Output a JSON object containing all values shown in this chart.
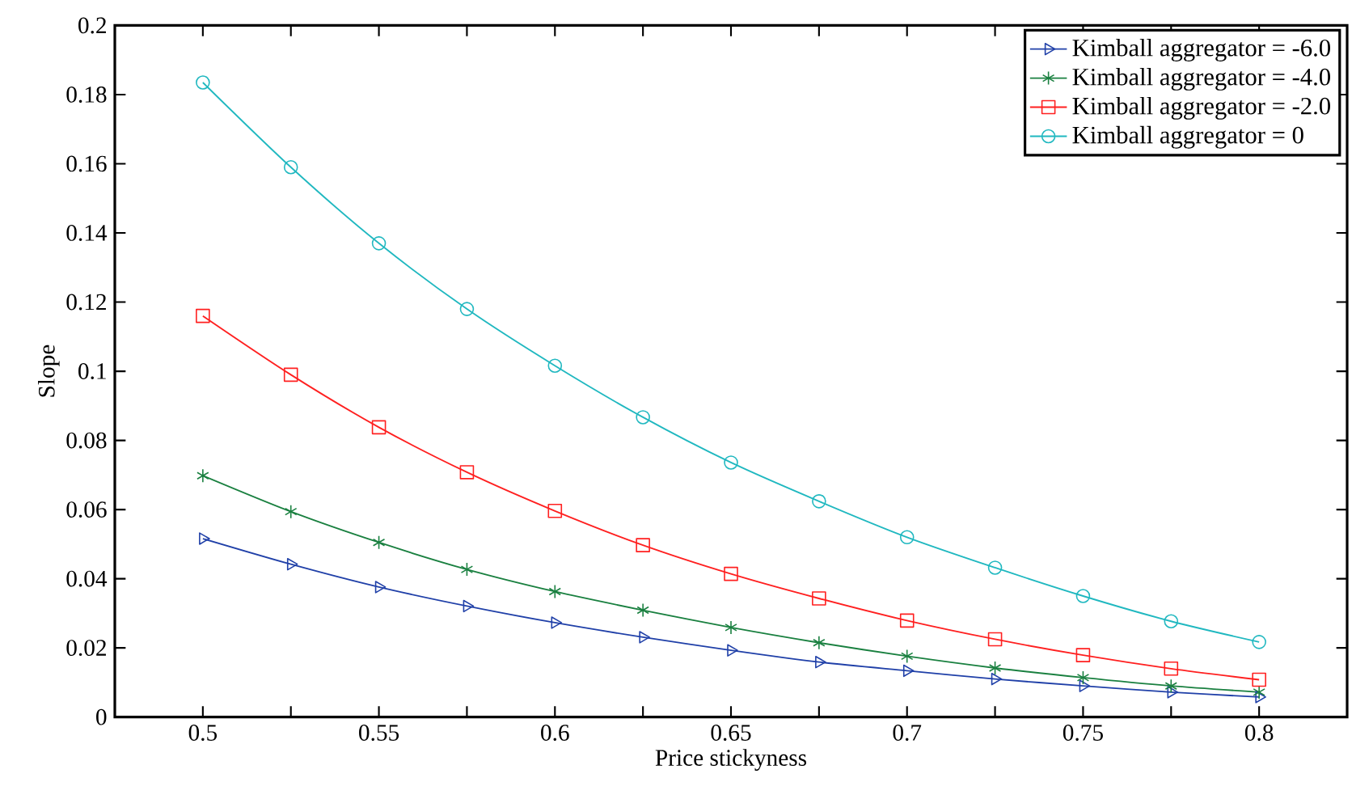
{
  "chart_data": {
    "type": "line",
    "xlabel": "Price stickyness",
    "ylabel": "Slope",
    "x": [
      0.5,
      0.525,
      0.55,
      0.575,
      0.6,
      0.625,
      0.65,
      0.675,
      0.7,
      0.725,
      0.75,
      0.775,
      0.8
    ],
    "series": [
      {
        "name": "Kimball aggregator = -6.0",
        "color": "#2040a8",
        "marker": "triangle",
        "values": [
          0.0516,
          0.0442,
          0.0376,
          0.0321,
          0.0273,
          0.0231,
          0.0193,
          0.0159,
          0.0134,
          0.011,
          0.009,
          0.0072,
          0.0058
        ]
      },
      {
        "name": "Kimball aggregator = -4.0",
        "color": "#1a8040",
        "marker": "cross",
        "values": [
          0.0698,
          0.0594,
          0.0505,
          0.0427,
          0.0363,
          0.0309,
          0.0259,
          0.0215,
          0.0176,
          0.0142,
          0.0114,
          0.009,
          0.0072
        ]
      },
      {
        "name": "Kimball aggregator = -2.0",
        "color": "#ff2020",
        "marker": "square",
        "values": [
          0.116,
          0.099,
          0.0838,
          0.0708,
          0.0596,
          0.0497,
          0.0414,
          0.0343,
          0.0279,
          0.0225,
          0.0179,
          0.014,
          0.0108
        ]
      },
      {
        "name": "Kimball aggregator = 0",
        "color": "#20b8c0",
        "marker": "circle",
        "values": [
          0.1835,
          0.159,
          0.137,
          0.118,
          0.1016,
          0.0867,
          0.0736,
          0.0624,
          0.052,
          0.0432,
          0.035,
          0.0277,
          0.0217
        ]
      }
    ],
    "xlim": [
      0.475,
      0.825
    ],
    "xticks": [
      0.5,
      {
        "value": 0.525,
        "label": null
      },
      0.55,
      {
        "value": 0.575,
        "label": null
      },
      0.6,
      {
        "value": 0.625,
        "label": null
      },
      0.65,
      {
        "value": 0.675,
        "label": null
      },
      0.7,
      {
        "value": 0.725,
        "label": null
      },
      0.75,
      {
        "value": 0.775,
        "label": null
      },
      0.8
    ],
    "ylim": [
      0,
      0.2
    ],
    "yticks": [
      0,
      0.02,
      0.04,
      0.06,
      0.08,
      0.1,
      0.12,
      0.14,
      0.16,
      0.18,
      0.2
    ],
    "legend": "top right",
    "grid": false,
    "line_style": "solid"
  }
}
